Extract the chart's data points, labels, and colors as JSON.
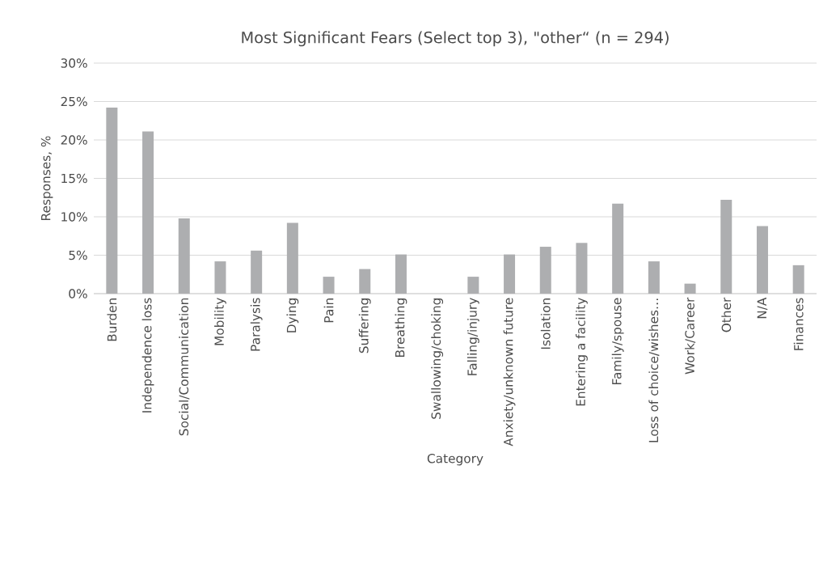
{
  "chart_data": {
    "type": "bar",
    "title": "Most Significant Fears (Select top 3), \"other“ (n = 294)",
    "xlabel": "Category",
    "ylabel": "Responses, %",
    "categories": [
      "Burden",
      "Independence loss",
      "Social/Communication",
      "Mobility",
      "Paralysis",
      "Dying",
      "Pain",
      "Suffering",
      "Breathing",
      "Swallowing/choking",
      "Falling/injury",
      "Anxiety/unknown future",
      "Isolation",
      "Entering a facility",
      "Family/spouse",
      "Loss of choice/wishes…",
      "Work/Career",
      "Other",
      "N/A",
      "Finances"
    ],
    "values": [
      24.2,
      21.1,
      9.8,
      4.2,
      5.6,
      9.2,
      2.2,
      3.2,
      5.1,
      0,
      2.2,
      5.1,
      6.1,
      6.6,
      11.7,
      4.2,
      1.3,
      12.2,
      8.8,
      3.7
    ],
    "color": "#adaeb0",
    "ylim": [
      0,
      30
    ],
    "yticks": [
      {
        "value": 0,
        "label": "0%"
      },
      {
        "value": 5,
        "label": "5%"
      },
      {
        "value": 10,
        "label": "10%"
      },
      {
        "value": 15,
        "label": "15%"
      },
      {
        "value": 20,
        "label": "20%"
      },
      {
        "value": 25,
        "label": "25%"
      },
      {
        "value": 30,
        "label": "30%"
      }
    ],
    "grid": "y"
  }
}
